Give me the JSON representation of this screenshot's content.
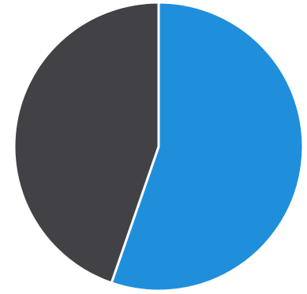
{
  "chart_data": {
    "type": "pie",
    "title": "",
    "start_angle_deg": 0,
    "direction": "clockwise",
    "slices": [
      {
        "label": "",
        "value": 55.3,
        "color": "#1f8fdb"
      },
      {
        "label": "",
        "value": 44.7,
        "color": "#414146"
      }
    ],
    "separator_color": "#ffffff",
    "legend": "none"
  }
}
